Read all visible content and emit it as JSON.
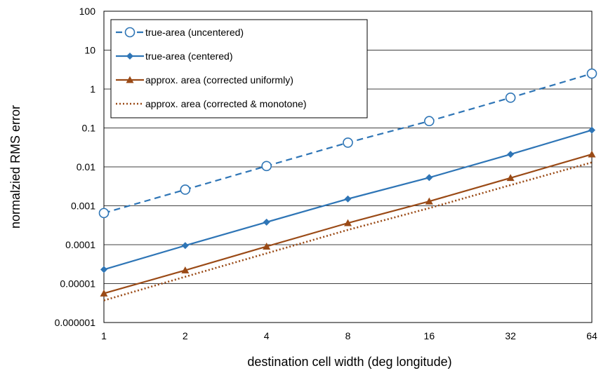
{
  "chart_data": {
    "type": "line",
    "title": "",
    "xlabel": "destination cell width (deg longitude)",
    "ylabel": "normalzied RMS error",
    "x_scale": "log2",
    "y_scale": "log10",
    "x": [
      1,
      2,
      4,
      8,
      16,
      32,
      64
    ],
    "x_tick_labels": [
      "1",
      "2",
      "4",
      "8",
      "16",
      "32",
      "64"
    ],
    "ylim": [
      1e-06,
      100
    ],
    "y_tick_labels": [
      "0.000001",
      "0.00001",
      "0.0001",
      "0.001",
      "0.01",
      "0.1",
      "1",
      "10",
      "100"
    ],
    "grid": "horizontal",
    "legend_position": "top-left",
    "series": [
      {
        "name": "true-area (uncentered)",
        "values": [
          0.00065,
          0.0026,
          0.0105,
          0.042,
          0.15,
          0.6,
          2.5
        ],
        "color": "#2e75b6",
        "line_style": "dashed",
        "marker": "open-circle"
      },
      {
        "name": "true-area (centered)",
        "values": [
          2.3e-05,
          9.5e-05,
          0.00038,
          0.0015,
          0.0053,
          0.021,
          0.088
        ],
        "color": "#2e75b6",
        "line_style": "solid",
        "marker": "diamond"
      },
      {
        "name": "approx. area (corrected uniformly)",
        "values": [
          5.6e-06,
          2.2e-05,
          9e-05,
          0.00036,
          0.0013,
          0.0052,
          0.021
        ],
        "color": "#9a4a16",
        "line_style": "solid",
        "marker": "triangle"
      },
      {
        "name": "approx. area (corrected & monotone)",
        "values": [
          3.7e-06,
          1.5e-05,
          6e-05,
          0.00024,
          0.00087,
          0.0034,
          0.013
        ],
        "color": "#9a4a16",
        "line_style": "dotted",
        "marker": "none"
      }
    ]
  }
}
